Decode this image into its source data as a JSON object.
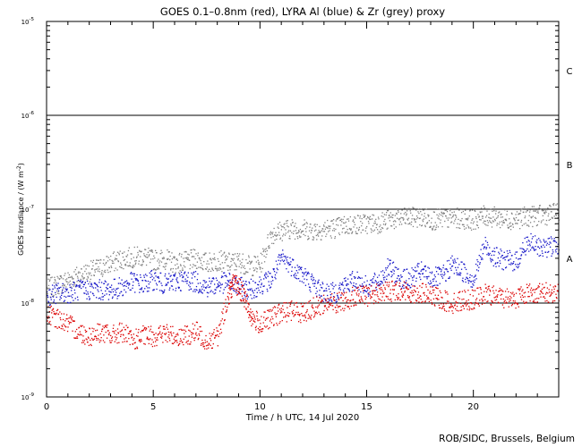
{
  "chart_data": {
    "type": "scatter",
    "title": "GOES 0.1–0.8nm (red), LYRA Al (blue) & Zr (grey) proxy",
    "xlabel": "Time / h UTC, 14 Jul 2020",
    "ylabel": "GOES Irradiance / (W m",
    "ylabel_sup": "-2",
    "ylabel_tail": ")",
    "xlim": [
      0,
      24
    ],
    "ylim": [
      1e-09,
      1e-05
    ],
    "yscale": "log",
    "x_ticks": [
      "0",
      "5",
      "10",
      "15",
      "20"
    ],
    "y_ticks": [
      {
        "base": "10",
        "exp": "-9"
      },
      {
        "base": "10",
        "exp": "-8"
      },
      {
        "base": "10",
        "exp": "-7"
      },
      {
        "base": "10",
        "exp": "-6"
      },
      {
        "base": "10",
        "exp": "-5"
      }
    ],
    "class_labels": [
      {
        "label": "A",
        "y": 3e-08
      },
      {
        "label": "B",
        "y": 3e-07
      },
      {
        "label": "C",
        "y": 3e-06
      }
    ],
    "thresholds": [
      1e-08,
      1e-07,
      1e-06
    ],
    "series": [
      {
        "color": "#808080",
        "points": [
          [
            0.0,
            1.4e-08
          ],
          [
            0.5,
            1.6e-08
          ],
          [
            1.0,
            1.8e-08
          ],
          [
            1.5,
            2e-08
          ],
          [
            2.0,
            2.2e-08
          ],
          [
            2.5,
            2.4e-08
          ],
          [
            3.0,
            2.7e-08
          ],
          [
            3.5,
            3e-08
          ],
          [
            4.0,
            3.1e-08
          ],
          [
            4.5,
            3.2e-08
          ],
          [
            5.0,
            2.9e-08
          ],
          [
            5.5,
            3e-08
          ],
          [
            6.0,
            2.7e-08
          ],
          [
            6.5,
            2.8e-08
          ],
          [
            7.0,
            3e-08
          ],
          [
            7.5,
            2.7e-08
          ],
          [
            8.0,
            2.9e-08
          ],
          [
            8.5,
            2.7e-08
          ],
          [
            9.0,
            2.8e-08
          ],
          [
            9.5,
            2.5e-08
          ],
          [
            10.0,
            2.6e-08
          ],
          [
            10.5,
            5.5e-08
          ],
          [
            11.0,
            6e-08
          ],
          [
            11.5,
            6.3e-08
          ],
          [
            12.0,
            6.2e-08
          ],
          [
            12.5,
            6e-08
          ],
          [
            13.0,
            6.2e-08
          ],
          [
            13.5,
            6.4e-08
          ],
          [
            14.0,
            6.8e-08
          ],
          [
            14.5,
            7e-08
          ],
          [
            15.0,
            7.1e-08
          ],
          [
            15.5,
            7.2e-08
          ],
          [
            16.0,
            7.8e-08
          ],
          [
            16.5,
            8e-08
          ],
          [
            17.0,
            8.2e-08
          ],
          [
            17.5,
            8.3e-08
          ],
          [
            18.0,
            7.8e-08
          ],
          [
            18.5,
            7.9e-08
          ],
          [
            19.0,
            8.1e-08
          ],
          [
            19.5,
            8e-08
          ],
          [
            20.0,
            7.8e-08
          ],
          [
            20.5,
            8.6e-08
          ],
          [
            21.0,
            8.3e-08
          ],
          [
            21.5,
            7.9e-08
          ],
          [
            22.0,
            8e-08
          ],
          [
            22.5,
            8.4e-08
          ],
          [
            23.0,
            8.6e-08
          ],
          [
            23.5,
            8.9e-08
          ],
          [
            24.0,
            9.2e-08
          ]
        ]
      },
      {
        "color": "#1414c8",
        "points": [
          [
            0.0,
            1.2e-08
          ],
          [
            0.5,
            1.3e-08
          ],
          [
            1.0,
            1.3e-08
          ],
          [
            1.5,
            1.4e-08
          ],
          [
            2.0,
            1.4e-08
          ],
          [
            2.5,
            1.4e-08
          ],
          [
            3.0,
            1.4e-08
          ],
          [
            3.5,
            1.5e-08
          ],
          [
            4.0,
            1.7e-08
          ],
          [
            4.5,
            1.6e-08
          ],
          [
            5.0,
            1.8e-08
          ],
          [
            5.5,
            1.6e-08
          ],
          [
            6.0,
            1.7e-08
          ],
          [
            6.5,
            1.8e-08
          ],
          [
            7.0,
            1.7e-08
          ],
          [
            7.5,
            1.5e-08
          ],
          [
            8.0,
            1.6e-08
          ],
          [
            8.5,
            1.7e-08
          ],
          [
            9.0,
            1.5e-08
          ],
          [
            9.5,
            1.4e-08
          ],
          [
            10.0,
            1.6e-08
          ],
          [
            10.5,
            1.8e-08
          ],
          [
            11.0,
            3e-08
          ],
          [
            11.5,
            2.5e-08
          ],
          [
            12.0,
            2e-08
          ],
          [
            12.5,
            1.6e-08
          ],
          [
            13.0,
            1.3e-08
          ],
          [
            13.5,
            1.3e-08
          ],
          [
            14.0,
            1.6e-08
          ],
          [
            14.5,
            1.8e-08
          ],
          [
            15.0,
            1.5e-08
          ],
          [
            15.5,
            1.7e-08
          ],
          [
            16.0,
            2.4e-08
          ],
          [
            16.5,
            1.9e-08
          ],
          [
            17.0,
            1.8e-08
          ],
          [
            17.5,
            2.2e-08
          ],
          [
            18.0,
            1.9e-08
          ],
          [
            18.5,
            1.9e-08
          ],
          [
            19.0,
            2.6e-08
          ],
          [
            19.5,
            2.2e-08
          ],
          [
            20.0,
            1.8e-08
          ],
          [
            20.5,
            4.2e-08
          ],
          [
            21.0,
            3.1e-08
          ],
          [
            21.5,
            2.9e-08
          ],
          [
            22.0,
            2.8e-08
          ],
          [
            22.5,
            4.5e-08
          ],
          [
            23.0,
            4e-08
          ],
          [
            23.5,
            4e-08
          ],
          [
            24.0,
            4.3e-08
          ]
        ]
      },
      {
        "color": "#dc0000",
        "points": [
          [
            0.0,
            7.5e-09
          ],
          [
            0.5,
            7e-09
          ],
          [
            1.0,
            6e-09
          ],
          [
            1.5,
            5e-09
          ],
          [
            2.0,
            4.5e-09
          ],
          [
            2.5,
            5e-09
          ],
          [
            3.0,
            4.5e-09
          ],
          [
            3.5,
            5e-09
          ],
          [
            4.0,
            4e-09
          ],
          [
            4.5,
            4.5e-09
          ],
          [
            5.0,
            4.5e-09
          ],
          [
            5.5,
            4.8e-09
          ],
          [
            6.0,
            4.5e-09
          ],
          [
            6.5,
            4.5e-09
          ],
          [
            7.0,
            5e-09
          ],
          [
            7.5,
            4e-09
          ],
          [
            8.0,
            4.5e-09
          ],
          [
            8.5,
            1.2e-08
          ],
          [
            8.7,
            1.6e-08
          ],
          [
            9.0,
            1.5e-08
          ],
          [
            9.3,
            1.1e-08
          ],
          [
            9.6,
            7e-09
          ],
          [
            10.0,
            6e-09
          ],
          [
            10.5,
            7e-09
          ],
          [
            11.0,
            8e-09
          ],
          [
            11.5,
            8.5e-09
          ],
          [
            12.0,
            8e-09
          ],
          [
            12.5,
            9e-09
          ],
          [
            13.0,
            1e-08
          ],
          [
            13.5,
            1e-08
          ],
          [
            14.0,
            1.1e-08
          ],
          [
            14.5,
            1.2e-08
          ],
          [
            15.0,
            1.2e-08
          ],
          [
            15.5,
            1.3e-08
          ],
          [
            16.0,
            1.35e-08
          ],
          [
            16.5,
            1.4e-08
          ],
          [
            17.0,
            1.3e-08
          ],
          [
            17.5,
            1.3e-08
          ],
          [
            18.0,
            1.2e-08
          ],
          [
            18.5,
            1.1e-08
          ],
          [
            19.0,
            1e-08
          ],
          [
            19.5,
            1.1e-08
          ],
          [
            20.0,
            1.1e-08
          ],
          [
            20.5,
            1.25e-08
          ],
          [
            21.0,
            1.2e-08
          ],
          [
            21.5,
            1.15e-08
          ],
          [
            22.0,
            1.15e-08
          ],
          [
            22.5,
            1.3e-08
          ],
          [
            23.0,
            1.3e-08
          ],
          [
            23.5,
            1.3e-08
          ],
          [
            24.0,
            1.35e-08
          ]
        ]
      }
    ]
  },
  "credit": "ROB/SIDC, Brussels, Belgium"
}
